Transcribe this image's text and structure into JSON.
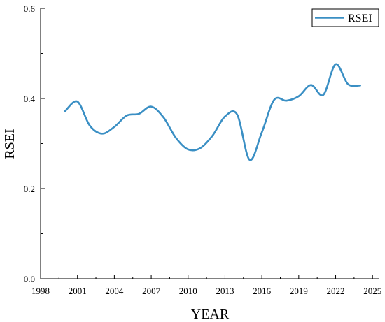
{
  "chart_data": {
    "type": "line",
    "xlabel": "YEAR",
    "ylabel": "RSEI",
    "xlim": [
      1998,
      2025.5
    ],
    "ylim": [
      0.0,
      0.6
    ],
    "x_ticks": [
      1998,
      2001,
      2004,
      2007,
      2010,
      2013,
      2016,
      2019,
      2022,
      2025
    ],
    "x_tick_labels": [
      "1998",
      "2001",
      "2004",
      "2007",
      "2010",
      "2013",
      "2016",
      "2019",
      "2022",
      "2025"
    ],
    "y_ticks": [
      0.0,
      0.2,
      0.4,
      0.6
    ],
    "y_tick_labels": [
      "0.0",
      "0.2",
      "0.4",
      "0.6"
    ],
    "grid": false,
    "legend_position": "top-right",
    "series": [
      {
        "name": "RSEI",
        "color": "#3a8fc4",
        "x": [
          2000,
          2001,
          2002,
          2003,
          2004,
          2005,
          2006,
          2007,
          2008,
          2009,
          2010,
          2011,
          2012,
          2013,
          2014,
          2015,
          2016,
          2017,
          2018,
          2019,
          2020,
          2021,
          2022,
          2023,
          2024
        ],
        "values": [
          0.372,
          0.393,
          0.34,
          0.322,
          0.337,
          0.362,
          0.366,
          0.382,
          0.358,
          0.313,
          0.287,
          0.29,
          0.318,
          0.36,
          0.364,
          0.264,
          0.325,
          0.397,
          0.395,
          0.405,
          0.43,
          0.408,
          0.476,
          0.432,
          0.429
        ]
      }
    ]
  }
}
